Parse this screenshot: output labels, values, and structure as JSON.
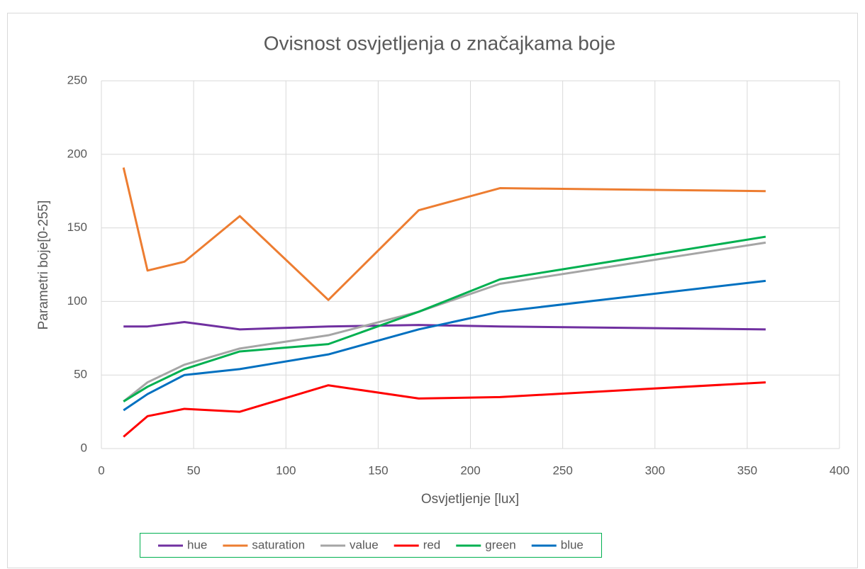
{
  "chart_data": {
    "type": "line",
    "title": "Ovisnost osvjetljenja o značajkama boje",
    "xlabel": "Osvjetljenje [lux]",
    "ylabel": "Parametri boje[0-255]",
    "x": [
      12,
      25,
      45,
      75,
      123,
      172,
      216,
      360
    ],
    "series": [
      {
        "name": "hue",
        "color": "#7030a0",
        "values": [
          83,
          83,
          86,
          81,
          83,
          84,
          83,
          81
        ]
      },
      {
        "name": "saturation",
        "color": "#ed7d31",
        "values": [
          191,
          121,
          127,
          158,
          101,
          162,
          177,
          175
        ]
      },
      {
        "name": "value",
        "color": "#a5a5a5",
        "values": [
          32,
          45,
          57,
          68,
          77,
          93,
          112,
          140
        ]
      },
      {
        "name": "red",
        "color": "#ff0000",
        "values": [
          8,
          22,
          27,
          25,
          43,
          34,
          35,
          45
        ]
      },
      {
        "name": "green",
        "color": "#00b050",
        "values": [
          32,
          42,
          54,
          66,
          71,
          93,
          115,
          144
        ]
      },
      {
        "name": "blue",
        "color": "#0070c0",
        "values": [
          26,
          37,
          50,
          54,
          64,
          81,
          93,
          114
        ]
      }
    ],
    "xlim": [
      0,
      400
    ],
    "xticks": [
      0,
      50,
      100,
      150,
      200,
      250,
      300,
      350,
      400
    ],
    "ylim": [
      0,
      250
    ],
    "yticks": [
      0,
      50,
      100,
      150,
      200,
      250
    ],
    "grid": true,
    "legend": "bottom"
  }
}
